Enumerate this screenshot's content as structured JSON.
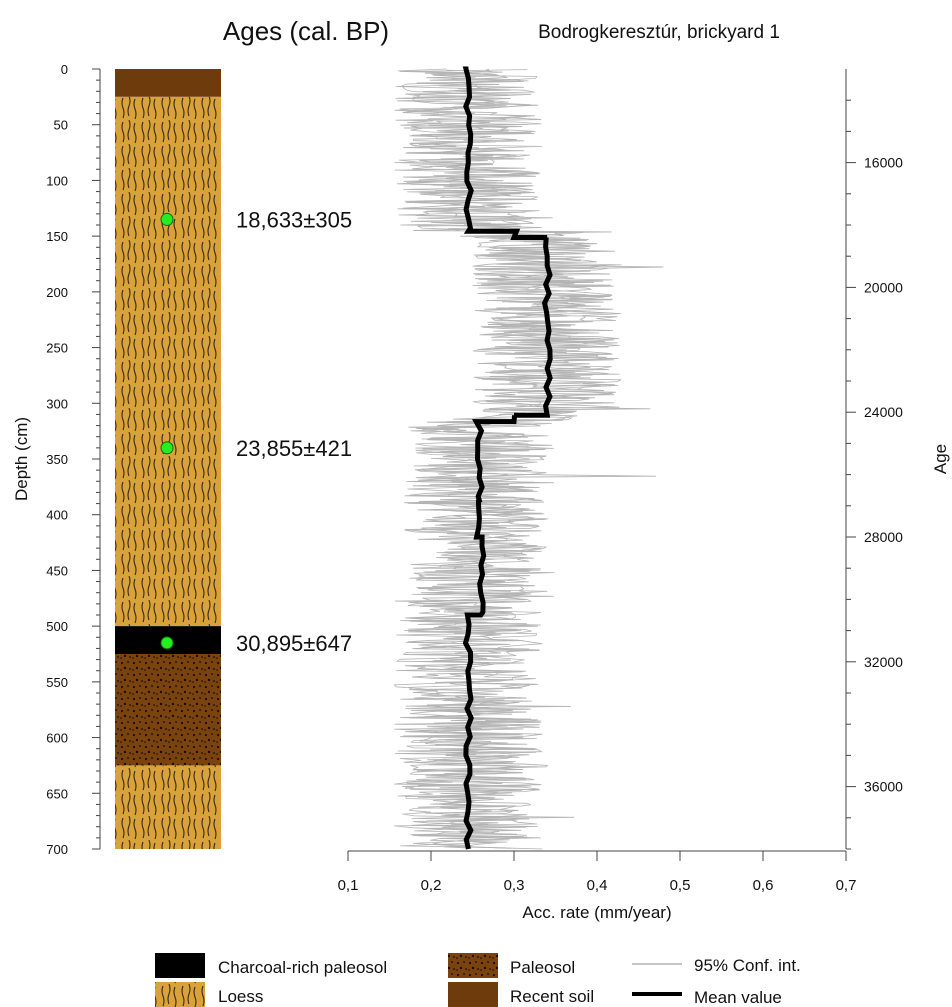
{
  "chart_data": {
    "type": "line",
    "title": "Bodrogkeresztúr, brickyard 1",
    "ages_title": "Ages (cal. BP)",
    "xlabel": "Acc. rate (mm/year)",
    "ylabel_left": "Depth (cm)",
    "ylabel_right": "Age",
    "xlim": [
      0.1,
      0.7
    ],
    "depth_lim": [
      0,
      700
    ],
    "age_lim": [
      13000,
      38000
    ],
    "x_ticks": [
      "0,1",
      "0,2",
      "0,3",
      "0,4",
      "0,5",
      "0,6",
      "0,7"
    ],
    "x_tick_values": [
      0.1,
      0.2,
      0.3,
      0.4,
      0.5,
      0.6,
      0.7
    ],
    "depth_ticks": [
      0,
      50,
      100,
      150,
      200,
      250,
      300,
      350,
      400,
      450,
      500,
      550,
      600,
      650,
      700
    ],
    "age_ticks": [
      16000,
      20000,
      24000,
      28000,
      32000,
      36000
    ],
    "dates": [
      {
        "depth": 135,
        "label": "18,633±305"
      },
      {
        "depth": 340,
        "label": "23,855±421"
      },
      {
        "depth": 515,
        "label": "30,895±647"
      }
    ],
    "units": [
      {
        "type": "recent-soil",
        "from": 0,
        "to": 25
      },
      {
        "type": "loess",
        "from": 25,
        "to": 500
      },
      {
        "type": "charcoal",
        "from": 500,
        "to": 525
      },
      {
        "type": "paleosol",
        "from": 525,
        "to": 625
      },
      {
        "type": "loess",
        "from": 625,
        "to": 700
      }
    ],
    "mean_steps": [
      {
        "from_age": 13000,
        "to_age": 18200,
        "rate": 0.245
      },
      {
        "from_age": 18200,
        "to_age": 18400,
        "rate": 0.3
      },
      {
        "from_age": 18400,
        "to_age": 24100,
        "rate": 0.34
      },
      {
        "from_age": 24100,
        "to_age": 24300,
        "rate": 0.3
      },
      {
        "from_age": 24300,
        "to_age": 26800,
        "rate": 0.258
      },
      {
        "from_age": 26800,
        "to_age": 28000,
        "rate": 0.255
      },
      {
        "from_age": 28000,
        "to_age": 30500,
        "rate": 0.26
      },
      {
        "from_age": 30500,
        "to_age": 38000,
        "rate": 0.245
      }
    ],
    "series": [
      {
        "name": "95% Conf. int.",
        "color": "#b4b4b4"
      },
      {
        "name": "Mean value",
        "color": "#000000"
      }
    ],
    "legend": [
      {
        "swatch": "charcoal",
        "label": "Charcoal-rich paleosol"
      },
      {
        "swatch": "paleosol",
        "label": "Paleosol"
      },
      {
        "swatch": "ci-line",
        "label": "95% Conf. int."
      },
      {
        "swatch": "loess",
        "label": "Loess"
      },
      {
        "swatch": "recent-soil",
        "label": "Recent soil"
      },
      {
        "swatch": "mean-line",
        "label": "Mean value"
      }
    ],
    "colors": {
      "loess": "#d9a23a",
      "recent_soil": "#6e3b0c",
      "paleosol": "#7a430e",
      "charcoal": "#000000",
      "date_marker": "#22ee22",
      "ci": "#b4b4b4",
      "mean": "#000000"
    }
  }
}
